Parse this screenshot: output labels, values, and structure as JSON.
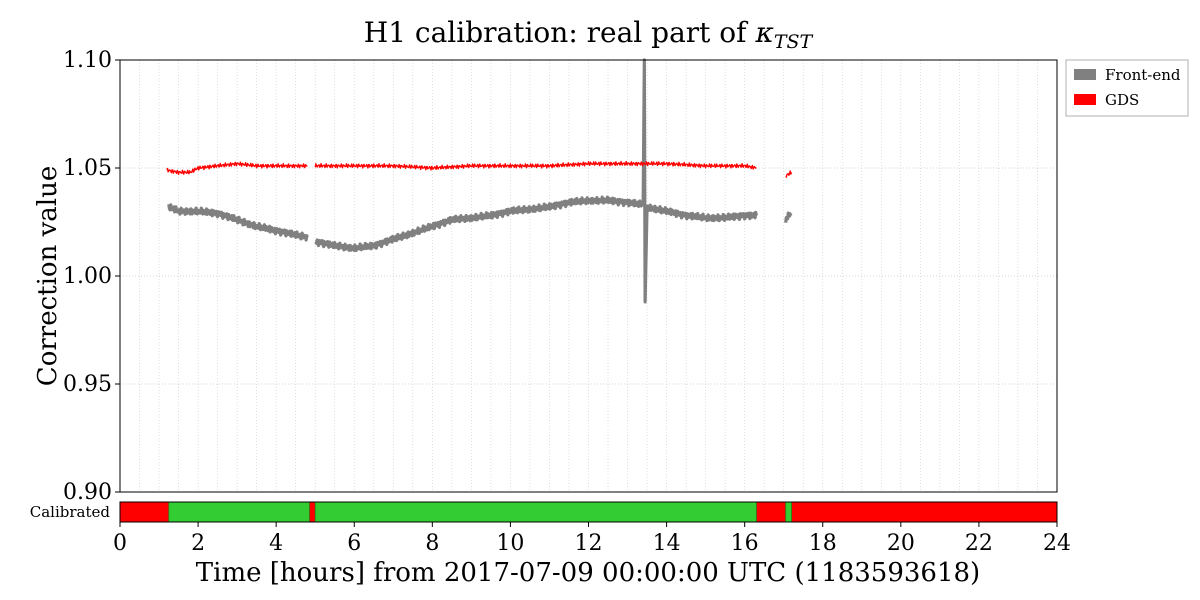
{
  "chart_data": {
    "type": "line",
    "title": "H1 calibration: real part of ",
    "title_symbol": "κ",
    "title_subscript": "TST",
    "xlabel": "Time [hours] from 2017-07-09 00:00:00 UTC (1183593618)",
    "ylabel": "Correction value",
    "xlim": [
      0,
      24
    ],
    "ylim": [
      0.9,
      1.1
    ],
    "x_ticks": [
      0,
      2,
      4,
      6,
      8,
      10,
      12,
      14,
      16,
      18,
      20,
      22,
      24
    ],
    "y_ticks": [
      "0.90",
      "0.95",
      "1.00",
      "1.05",
      "1.10"
    ],
    "grid": true,
    "legend_position": "outside-top-right",
    "series": [
      {
        "name": "Front-end",
        "color": "#808080",
        "segments": [
          {
            "x": [
              1.25,
              1.5,
              2.0,
              2.5,
              3.0,
              3.5,
              4.0,
              4.5,
              4.8
            ],
            "y": [
              1.032,
              1.03,
              1.03,
              1.029,
              1.026,
              1.023,
              1.021,
              1.019,
              1.018
            ]
          },
          {
            "x": [
              5.0,
              5.5,
              6.0,
              6.5,
              7.0,
              7.5,
              8.0,
              8.5,
              9.0,
              9.5,
              10.0,
              10.5,
              11.0,
              11.5,
              12.0,
              12.5,
              13.0,
              13.4,
              13.43,
              13.45,
              13.5,
              14.0,
              14.5,
              15.0,
              15.5,
              16.0,
              16.3
            ],
            "y": [
              1.016,
              1.014,
              1.013,
              1.014,
              1.017,
              1.02,
              1.023,
              1.026,
              1.027,
              1.028,
              1.03,
              1.031,
              1.032,
              1.034,
              1.035,
              1.035,
              1.034,
              1.033,
              1.1,
              0.988,
              1.032,
              1.03,
              1.028,
              1.027,
              1.027,
              1.028,
              1.028
            ]
          },
          {
            "x": [
              17.05,
              17.1,
              17.2
            ],
            "y": [
              1.025,
              1.028,
              1.029
            ]
          }
        ]
      },
      {
        "name": "GDS",
        "color": "#ff0000",
        "segments": [
          {
            "x": [
              1.2,
              1.5,
              1.8,
              2.0,
              2.5,
              3.0,
              3.5,
              4.0,
              4.5,
              4.8
            ],
            "y": [
              1.049,
              1.048,
              1.048,
              1.05,
              1.051,
              1.052,
              1.051,
              1.051,
              1.051,
              1.051
            ]
          },
          {
            "x": [
              5.0,
              5.5,
              6.0,
              7.0,
              8.0,
              9.0,
              10.0,
              11.0,
              12.0,
              13.0,
              14.0,
              15.0,
              16.0,
              16.3
            ],
            "y": [
              1.051,
              1.051,
              1.051,
              1.051,
              1.05,
              1.051,
              1.051,
              1.051,
              1.052,
              1.052,
              1.052,
              1.051,
              1.051,
              1.05
            ]
          },
          {
            "x": [
              17.05,
              17.1,
              17.2
            ],
            "y": [
              1.046,
              1.047,
              1.048
            ]
          }
        ]
      }
    ],
    "state_bar": {
      "label": "Calibrated",
      "on_color": "#33cc33",
      "off_color": "#ff0000",
      "on_segments": [
        [
          1.25,
          4.85
        ],
        [
          5.0,
          16.3
        ],
        [
          17.05,
          17.2
        ]
      ]
    }
  }
}
